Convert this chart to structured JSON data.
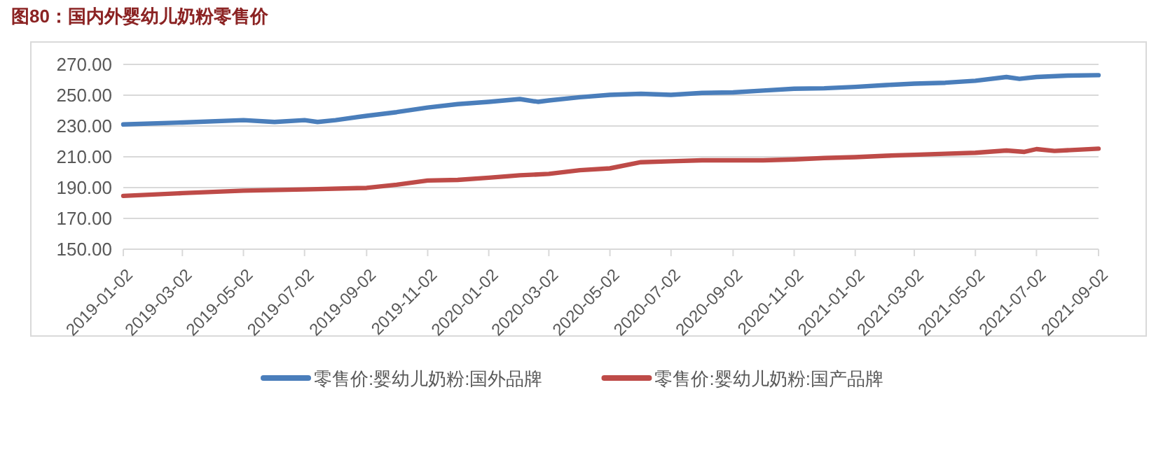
{
  "chart_data": {
    "type": "line",
    "title": "图80：国内外婴幼儿奶粉零售价",
    "xlim": [
      "2019-01-02",
      "2021-09-02"
    ],
    "xticks": [
      "2019-01-02",
      "2019-03-02",
      "2019-05-02",
      "2019-07-02",
      "2019-09-02",
      "2019-11-02",
      "2020-01-02",
      "2020-03-02",
      "2020-05-02",
      "2020-07-02",
      "2020-09-02",
      "2020-11-02",
      "2021-01-02",
      "2021-03-02",
      "2021-05-02",
      "2021-07-02",
      "2021-09-02"
    ],
    "ylim": [
      150,
      270
    ],
    "yticks": [
      {
        "value": 150,
        "label": "150.00"
      },
      {
        "value": 170,
        "label": "170.00"
      },
      {
        "value": 190,
        "label": "190.00"
      },
      {
        "value": 210,
        "label": "210.00"
      },
      {
        "value": 230,
        "label": "230.00"
      },
      {
        "value": 250,
        "label": "250.00"
      },
      {
        "value": 270,
        "label": "270.00"
      }
    ],
    "grid": "y",
    "legend": "bottom",
    "marker": "none",
    "line_style": "solid",
    "series": [
      {
        "name": "零售价:婴幼儿奶粉:国外品牌",
        "color": "#4a7ebb",
        "x": [
          "2019-01-02",
          "2019-03-02",
          "2019-05-02",
          "2019-06-02",
          "2019-07-02",
          "2019-07-15",
          "2019-08-02",
          "2019-09-02",
          "2019-10-02",
          "2019-11-02",
          "2019-12-02",
          "2020-01-02",
          "2020-02-02",
          "2020-02-20",
          "2020-03-02",
          "2020-04-02",
          "2020-05-02",
          "2020-06-02",
          "2020-07-02",
          "2020-08-02",
          "2020-09-02",
          "2020-10-02",
          "2020-11-02",
          "2020-12-02",
          "2021-01-02",
          "2021-02-02",
          "2021-03-02",
          "2021-04-02",
          "2021-05-02",
          "2021-06-02",
          "2021-06-15",
          "2021-07-02",
          "2021-08-02",
          "2021-09-02"
        ],
        "values": [
          231.0,
          232.3,
          233.8,
          232.6,
          233.8,
          232.6,
          233.8,
          236.6,
          239.0,
          242.0,
          244.2,
          245.7,
          247.5,
          245.7,
          246.6,
          248.7,
          250.2,
          250.9,
          250.2,
          251.5,
          251.8,
          253.0,
          254.2,
          254.5,
          255.4,
          256.6,
          257.5,
          258.1,
          259.4,
          261.8,
          260.6,
          261.8,
          262.7,
          263.0
        ]
      },
      {
        "name": "零售价:婴幼儿奶粉:国产品牌",
        "color": "#be4b48",
        "x": [
          "2019-01-02",
          "2019-03-02",
          "2019-05-02",
          "2019-07-02",
          "2019-09-02",
          "2019-10-02",
          "2019-11-02",
          "2019-12-02",
          "2020-01-02",
          "2020-02-02",
          "2020-03-02",
          "2020-04-02",
          "2020-05-02",
          "2020-06-02",
          "2020-07-02",
          "2020-08-02",
          "2020-09-02",
          "2020-10-02",
          "2020-11-02",
          "2020-12-02",
          "2021-01-02",
          "2021-02-02",
          "2021-03-02",
          "2021-04-02",
          "2021-05-02",
          "2021-06-02",
          "2021-06-20",
          "2021-07-02",
          "2021-07-20",
          "2021-09-02"
        ],
        "values": [
          184.6,
          186.4,
          188.0,
          188.8,
          189.8,
          191.9,
          194.6,
          195.0,
          196.4,
          198.0,
          198.9,
          201.3,
          202.5,
          206.5,
          207.1,
          207.7,
          207.7,
          207.7,
          208.3,
          209.2,
          209.8,
          210.7,
          211.3,
          212.0,
          212.6,
          214.1,
          213.2,
          215.0,
          213.8,
          215.3
        ]
      }
    ]
  }
}
